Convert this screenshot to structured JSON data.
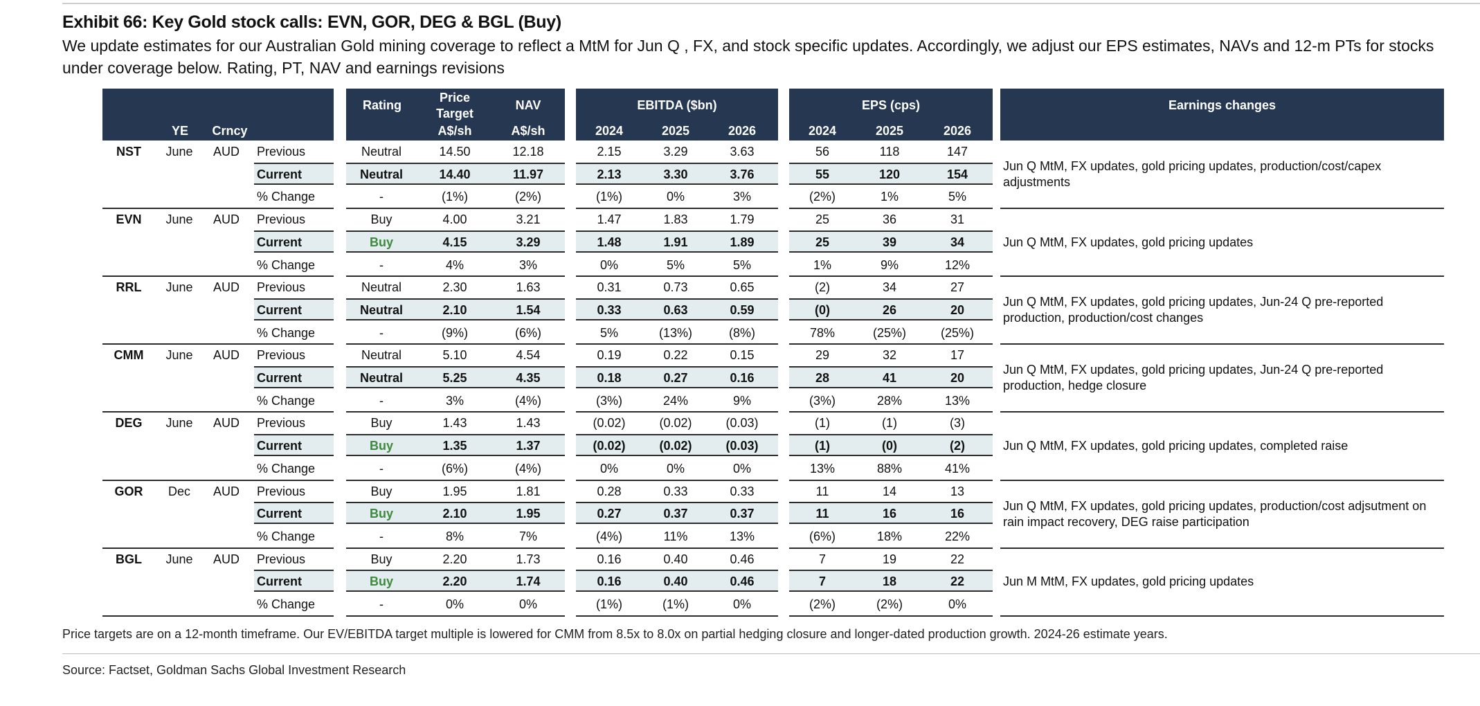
{
  "title": "Exhibit 66: Key Gold stock calls: EVN, GOR, DEG & BGL (Buy)",
  "subtitle": "We update estimates for our Australian Gold mining coverage to reflect a MtM for Jun Q , FX, and stock specific updates. Accordingly, we adjust our EPS estimates, NAVs and 12-m PTs for stocks under coverage below. Rating, PT, NAV and earnings revisions",
  "headers": {
    "ye": "YE",
    "crncy": "Crncy",
    "rating": "Rating",
    "pt_line1": "Price",
    "pt_line2": "Target",
    "pt_unit": "A$/sh",
    "nav": "NAV",
    "nav_unit": "A$/sh",
    "ebitda": "EBITDA ($bn)",
    "eps": "EPS (cps)",
    "years": [
      "2024",
      "2025",
      "2026"
    ],
    "earnings": "Earnings changes"
  },
  "row_labels": [
    "Previous",
    "Current",
    "% Change"
  ],
  "stocks": [
    {
      "ticker": "NST",
      "ye": "June",
      "crncy": "AUD",
      "rating_green": false,
      "rows": [
        [
          "Neutral",
          "14.50",
          "12.18",
          "2.15",
          "3.29",
          "3.63",
          "56",
          "118",
          "147"
        ],
        [
          "Neutral",
          "14.40",
          "11.97",
          "2.13",
          "3.30",
          "3.76",
          "55",
          "120",
          "154"
        ],
        [
          "-",
          "(1%)",
          "(2%)",
          "(1%)",
          "0%",
          "3%",
          "(2%)",
          "1%",
          "5%"
        ]
      ],
      "note": "Jun Q MtM, FX updates, gold pricing updates, production/cost/capex adjustments"
    },
    {
      "ticker": "EVN",
      "ye": "June",
      "crncy": "AUD",
      "rating_green": true,
      "rows": [
        [
          "Buy",
          "4.00",
          "3.21",
          "1.47",
          "1.83",
          "1.79",
          "25",
          "36",
          "31"
        ],
        [
          "Buy",
          "4.15",
          "3.29",
          "1.48",
          "1.91",
          "1.89",
          "25",
          "39",
          "34"
        ],
        [
          "-",
          "4%",
          "3%",
          "0%",
          "5%",
          "5%",
          "1%",
          "9%",
          "12%"
        ]
      ],
      "note": "Jun Q MtM, FX updates, gold pricing updates"
    },
    {
      "ticker": "RRL",
      "ye": "June",
      "crncy": "AUD",
      "rating_green": false,
      "rows": [
        [
          "Neutral",
          "2.30",
          "1.63",
          "0.31",
          "0.73",
          "0.65",
          "(2)",
          "34",
          "27"
        ],
        [
          "Neutral",
          "2.10",
          "1.54",
          "0.33",
          "0.63",
          "0.59",
          "(0)",
          "26",
          "20"
        ],
        [
          "-",
          "(9%)",
          "(6%)",
          "5%",
          "(13%)",
          "(8%)",
          "78%",
          "(25%)",
          "(25%)"
        ]
      ],
      "note": "Jun Q MtM, FX updates, gold pricing updates, Jun-24 Q pre-reported production, production/cost changes"
    },
    {
      "ticker": "CMM",
      "ye": "June",
      "crncy": "AUD",
      "rating_green": false,
      "rows": [
        [
          "Neutral",
          "5.10",
          "4.54",
          "0.19",
          "0.22",
          "0.15",
          "29",
          "32",
          "17"
        ],
        [
          "Neutral",
          "5.25",
          "4.35",
          "0.18",
          "0.27",
          "0.16",
          "28",
          "41",
          "20"
        ],
        [
          "-",
          "3%",
          "(4%)",
          "(3%)",
          "24%",
          "9%",
          "(3%)",
          "28%",
          "13%"
        ]
      ],
      "note": "Jun Q MtM, FX updates, gold pricing updates, Jun-24 Q pre-reported production, hedge closure"
    },
    {
      "ticker": "DEG",
      "ye": "June",
      "crncy": "AUD",
      "rating_green": true,
      "rows": [
        [
          "Buy",
          "1.43",
          "1.43",
          "(0.02)",
          "(0.02)",
          "(0.03)",
          "(1)",
          "(1)",
          "(3)"
        ],
        [
          "Buy",
          "1.35",
          "1.37",
          "(0.02)",
          "(0.02)",
          "(0.03)",
          "(1)",
          "(0)",
          "(2)"
        ],
        [
          "-",
          "(6%)",
          "(4%)",
          "0%",
          "0%",
          "0%",
          "13%",
          "88%",
          "41%"
        ]
      ],
      "note": "Jun Q MtM, FX updates, gold pricing updates, completed raise"
    },
    {
      "ticker": "GOR",
      "ye": "Dec",
      "crncy": "AUD",
      "rating_green": true,
      "rows": [
        [
          "Buy",
          "1.95",
          "1.81",
          "0.28",
          "0.33",
          "0.33",
          "11",
          "14",
          "13"
        ],
        [
          "Buy",
          "2.10",
          "1.95",
          "0.27",
          "0.37",
          "0.37",
          "11",
          "16",
          "16"
        ],
        [
          "-",
          "8%",
          "7%",
          "(4%)",
          "11%",
          "13%",
          "(6%)",
          "18%",
          "22%"
        ]
      ],
      "note": "Jun Q MtM, FX updates, gold pricing updates, production/cost adjsutment on rain impact recovery, DEG raise participation"
    },
    {
      "ticker": "BGL",
      "ye": "June",
      "crncy": "AUD",
      "rating_green": true,
      "rows": [
        [
          "Buy",
          "2.20",
          "1.73",
          "0.16",
          "0.40",
          "0.46",
          "7",
          "19",
          "22"
        ],
        [
          "Buy",
          "2.20",
          "1.74",
          "0.16",
          "0.40",
          "0.46",
          "7",
          "18",
          "22"
        ],
        [
          "-",
          "0%",
          "0%",
          "(1%)",
          "(1%)",
          "0%",
          "(2%)",
          "(2%)",
          "0%"
        ]
      ],
      "note": "Jun M MtM, FX updates, gold pricing updates"
    }
  ],
  "footnote": "Price targets are on a 12-month timeframe. Our EV/EBITDA target multiple is lowered for CMM from 8.5x to 8.0x on partial hedging closure and longer-dated production growth. 2024-26 estimate years.",
  "source": "Source: Factset, Goldman Sachs Global Investment Research"
}
